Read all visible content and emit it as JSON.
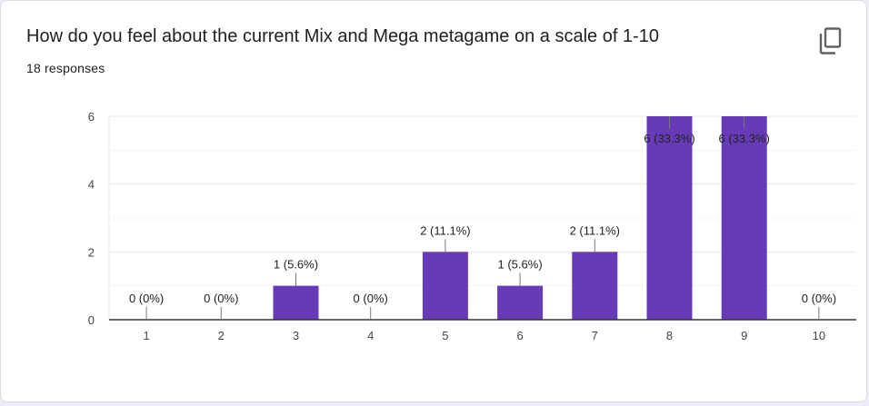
{
  "question": {
    "title": "How do you feel about the current Mix and Mega metagame on a scale of 1-10",
    "responses_label": "18 responses"
  },
  "icons": {
    "copy": "copy-icon"
  },
  "colors": {
    "bar": "#673ab7",
    "grid": "#e6e6e6",
    "axis": "#333333"
  },
  "chart_data": {
    "type": "bar",
    "categories": [
      "1",
      "2",
      "3",
      "4",
      "5",
      "6",
      "7",
      "8",
      "9",
      "10"
    ],
    "values": [
      0,
      0,
      1,
      0,
      2,
      1,
      2,
      6,
      6,
      0
    ],
    "data_labels": [
      "0 (0%)",
      "0 (0%)",
      "1 (5.6%)",
      "0 (0%)",
      "2 (11.1%)",
      "1 (5.6%)",
      "2 (11.1%)",
      "6 (33.3%)",
      "6 (33.3%)",
      "0 (0%)"
    ],
    "ylim": [
      0,
      6
    ],
    "yticks": [
      0,
      2,
      4,
      6
    ],
    "grid": true,
    "title": "",
    "xlabel": "",
    "ylabel": ""
  }
}
